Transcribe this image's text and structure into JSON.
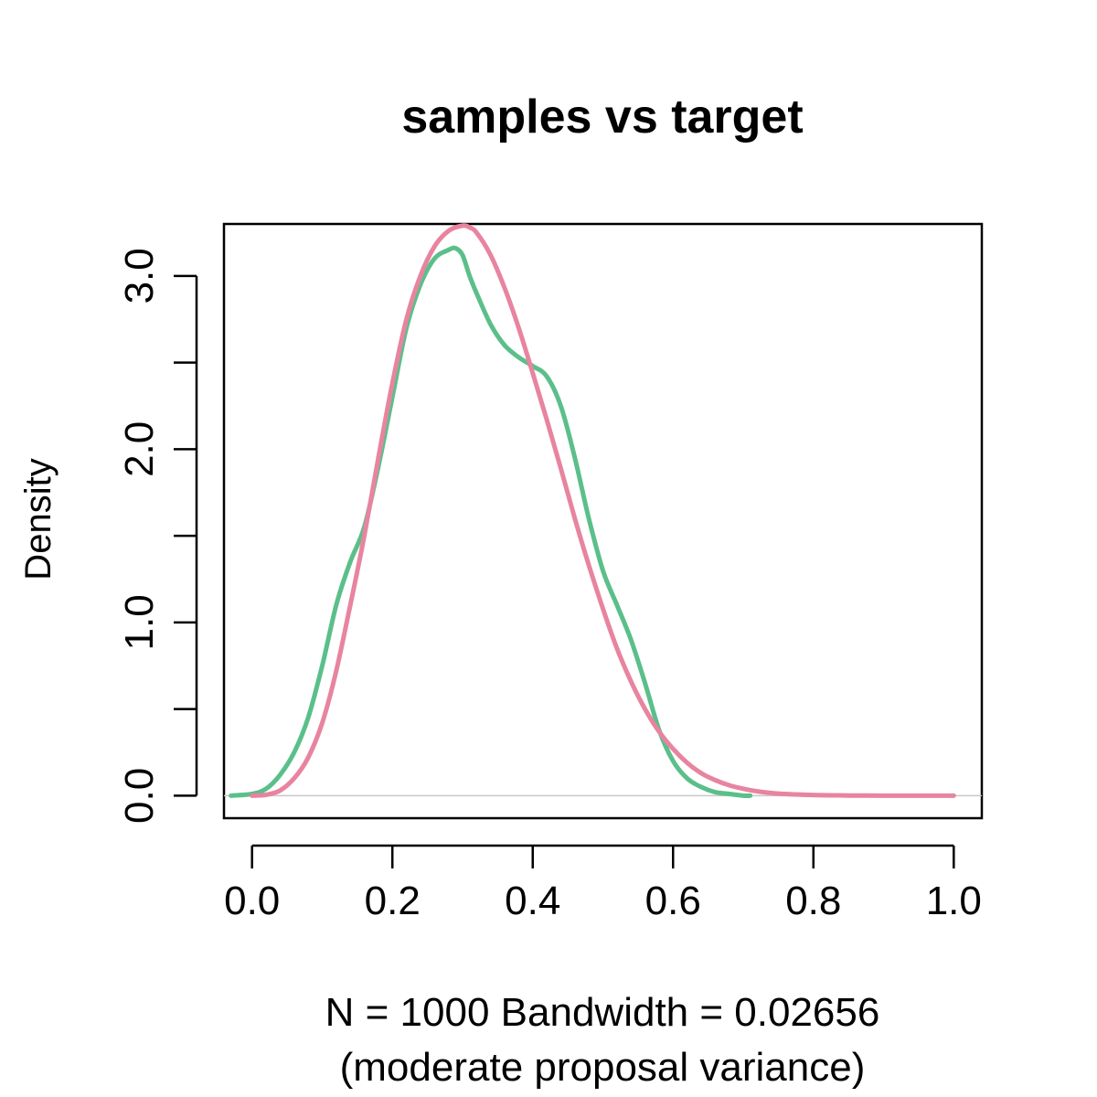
{
  "chart_data": {
    "type": "line",
    "title": "samples vs target",
    "xlabel_line1": "N = 1000   Bandwidth = 0.02656",
    "xlabel_line2": "(moderate proposal variance)",
    "ylabel": "Density",
    "xlim": [
      -0.04,
      1.04
    ],
    "ylim": [
      -0.13,
      3.3
    ],
    "x_ticks": [
      0.0,
      0.2,
      0.4,
      0.6,
      0.8,
      1.0
    ],
    "x_tick_labels": [
      "0.0",
      "0.2",
      "0.4",
      "0.6",
      "0.8",
      "1.0"
    ],
    "y_ticks": [
      0.0,
      0.5,
      1.0,
      1.5,
      2.0,
      2.5,
      3.0
    ],
    "y_tick_labels": [
      "0.0",
      "",
      "1.0",
      "",
      "2.0",
      "",
      "3.0"
    ],
    "zero_line": true,
    "grid": false,
    "series": [
      {
        "color": "#5bbf8a",
        "x": [
          -0.03,
          0.0,
          0.02,
          0.04,
          0.06,
          0.08,
          0.1,
          0.12,
          0.14,
          0.16,
          0.18,
          0.2,
          0.22,
          0.24,
          0.26,
          0.28,
          0.29,
          0.3,
          0.31,
          0.32,
          0.34,
          0.36,
          0.38,
          0.4,
          0.42,
          0.44,
          0.46,
          0.48,
          0.5,
          0.52,
          0.54,
          0.56,
          0.58,
          0.6,
          0.62,
          0.64,
          0.66,
          0.68,
          0.7,
          0.71
        ],
        "y": [
          0.0,
          0.01,
          0.04,
          0.12,
          0.25,
          0.45,
          0.75,
          1.1,
          1.35,
          1.55,
          1.9,
          2.3,
          2.7,
          2.95,
          3.1,
          3.15,
          3.16,
          3.12,
          3.0,
          2.9,
          2.72,
          2.6,
          2.53,
          2.48,
          2.42,
          2.25,
          1.95,
          1.6,
          1.3,
          1.1,
          0.9,
          0.65,
          0.38,
          0.2,
          0.1,
          0.05,
          0.02,
          0.01,
          0.0,
          0.0
        ]
      },
      {
        "color": "#e8849f",
        "x": [
          0.0,
          0.02,
          0.04,
          0.06,
          0.08,
          0.1,
          0.12,
          0.14,
          0.16,
          0.18,
          0.2,
          0.22,
          0.24,
          0.26,
          0.28,
          0.3,
          0.31,
          0.32,
          0.34,
          0.36,
          0.38,
          0.4,
          0.42,
          0.44,
          0.46,
          0.48,
          0.5,
          0.52,
          0.54,
          0.56,
          0.58,
          0.6,
          0.62,
          0.64,
          0.66,
          0.68,
          0.7,
          0.72,
          0.75,
          0.8,
          0.85,
          0.9,
          0.95,
          1.0
        ],
        "y": [
          0.0,
          0.005,
          0.03,
          0.1,
          0.22,
          0.42,
          0.72,
          1.1,
          1.5,
          1.95,
          2.38,
          2.75,
          3.0,
          3.17,
          3.26,
          3.29,
          3.28,
          3.25,
          3.12,
          2.93,
          2.7,
          2.44,
          2.17,
          1.89,
          1.6,
          1.33,
          1.08,
          0.85,
          0.66,
          0.5,
          0.37,
          0.27,
          0.19,
          0.13,
          0.09,
          0.06,
          0.04,
          0.025,
          0.012,
          0.004,
          0.001,
          0.0,
          0.0,
          0.0
        ]
      }
    ]
  }
}
